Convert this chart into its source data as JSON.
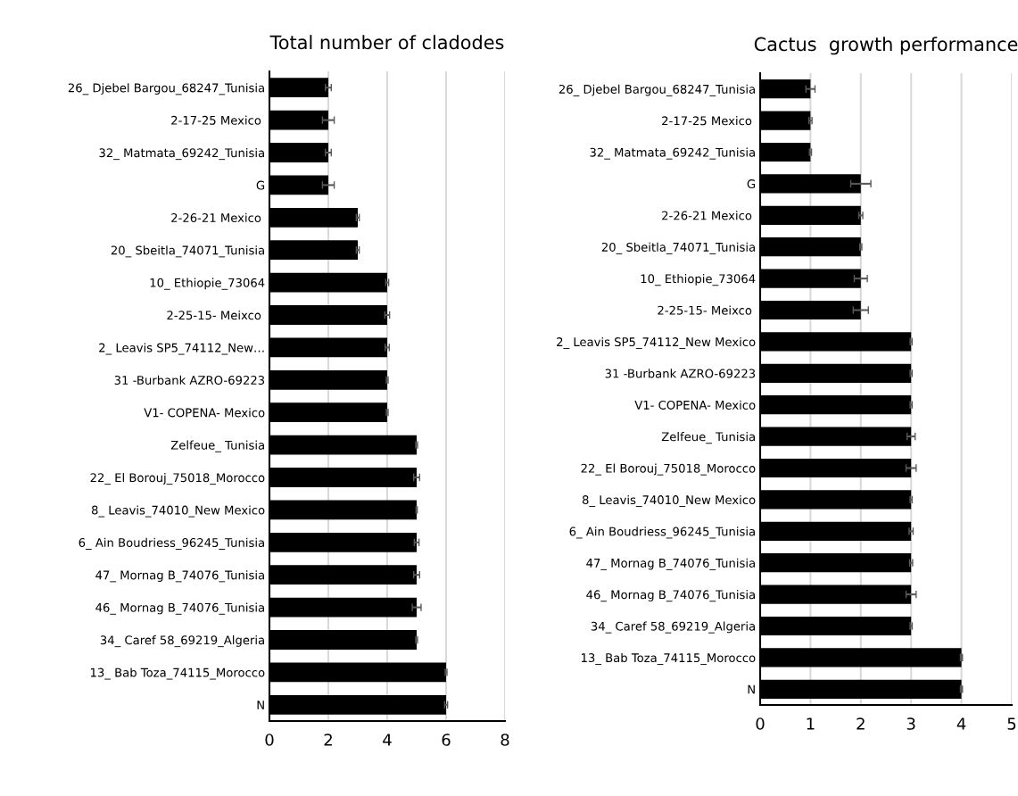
{
  "chart_data": [
    {
      "type": "bar",
      "orientation": "horizontal",
      "title": "Total number of cladodes",
      "categories": [
        "26_ Djebel Bargou_68247_Tunisia",
        "2-17-25 Mexico ",
        "32_ Matmata_69242_Tunisia",
        "G",
        "2-26-21 Mexico ",
        "20_ Sbeitla_74071_Tunisia",
        "10_ Ethiopie_73064",
        "2-25-15- Meixco ",
        "2_ Leavis SP5_74112_New…",
        "31 -Burbank AZRO-69223",
        "V1- COPENA- Mexico",
        "Zelfeue_ Tunisia",
        "22_ El Borouj_75018_Morocco",
        "8_ Leavis_74010_New Mexico",
        "6_ Ain Boudriess_96245_Tunisia",
        "47_ Mornag B_74076_Tunisia",
        "46_ Mornag B_74076_Tunisia",
        "34_ Caref 58_69219_Algeria",
        "13_ Bab Toza_74115_Morocco",
        "N"
      ],
      "values": [
        2,
        2,
        2,
        2,
        3,
        3,
        4,
        4,
        4,
        4,
        4,
        5,
        5,
        5,
        5,
        5,
        5,
        5,
        6,
        6
      ],
      "errors": [
        0.1,
        0.2,
        0.1,
        0.2,
        0.05,
        0.05,
        0.05,
        0.08,
        0.07,
        0.03,
        0.03,
        0.03,
        0.1,
        0.02,
        0.08,
        0.1,
        0.15,
        0.03,
        0.03,
        0.05
      ],
      "color": "#000000",
      "xlim": [
        0,
        8
      ],
      "xticks": [
        0,
        2,
        4,
        6,
        8
      ],
      "grid": "x"
    },
    {
      "type": "bar",
      "orientation": "horizontal",
      "title": "Cactus  growth performance",
      "categories": [
        "26_ Djebel Bargou_68247_Tunisia",
        "2-17-25 Mexico ",
        "32_ Matmata_69242_Tunisia",
        "G",
        "2-26-21 Mexico ",
        "20_ Sbeitla_74071_Tunisia",
        "10_ Ethiopie_73064",
        "2-25-15- Meixco ",
        "2_ Leavis SP5_74112_New Mexico",
        "31 -Burbank AZRO-69223",
        "V1- COPENA- Mexico",
        "Zelfeue_ Tunisia",
        "22_ El Borouj_75018_Morocco",
        "8_ Leavis_74010_New Mexico",
        "6_ Ain Boudriess_96245_Tunisia",
        "47_ Mornag B_74076_Tunisia",
        "46_ Mornag B_74076_Tunisia",
        "34_ Caref 58_69219_Algeria",
        "13_ Bab Toza_74115_Morocco",
        "N"
      ],
      "values": [
        1,
        1,
        1,
        2,
        2,
        2,
        2,
        2,
        3,
        3,
        3,
        3,
        3,
        3,
        3,
        3,
        3,
        3,
        4,
        4
      ],
      "errors": [
        0.09,
        0.03,
        0.02,
        0.2,
        0.04,
        0.02,
        0.13,
        0.15,
        0.02,
        0.02,
        0.02,
        0.08,
        0.1,
        0.02,
        0.04,
        0.03,
        0.1,
        0.02,
        0.02,
        0.02
      ],
      "color": "#000000",
      "xlim": [
        0,
        5
      ],
      "xticks": [
        0,
        1,
        2,
        3,
        4,
        5
      ],
      "grid": "x"
    }
  ]
}
